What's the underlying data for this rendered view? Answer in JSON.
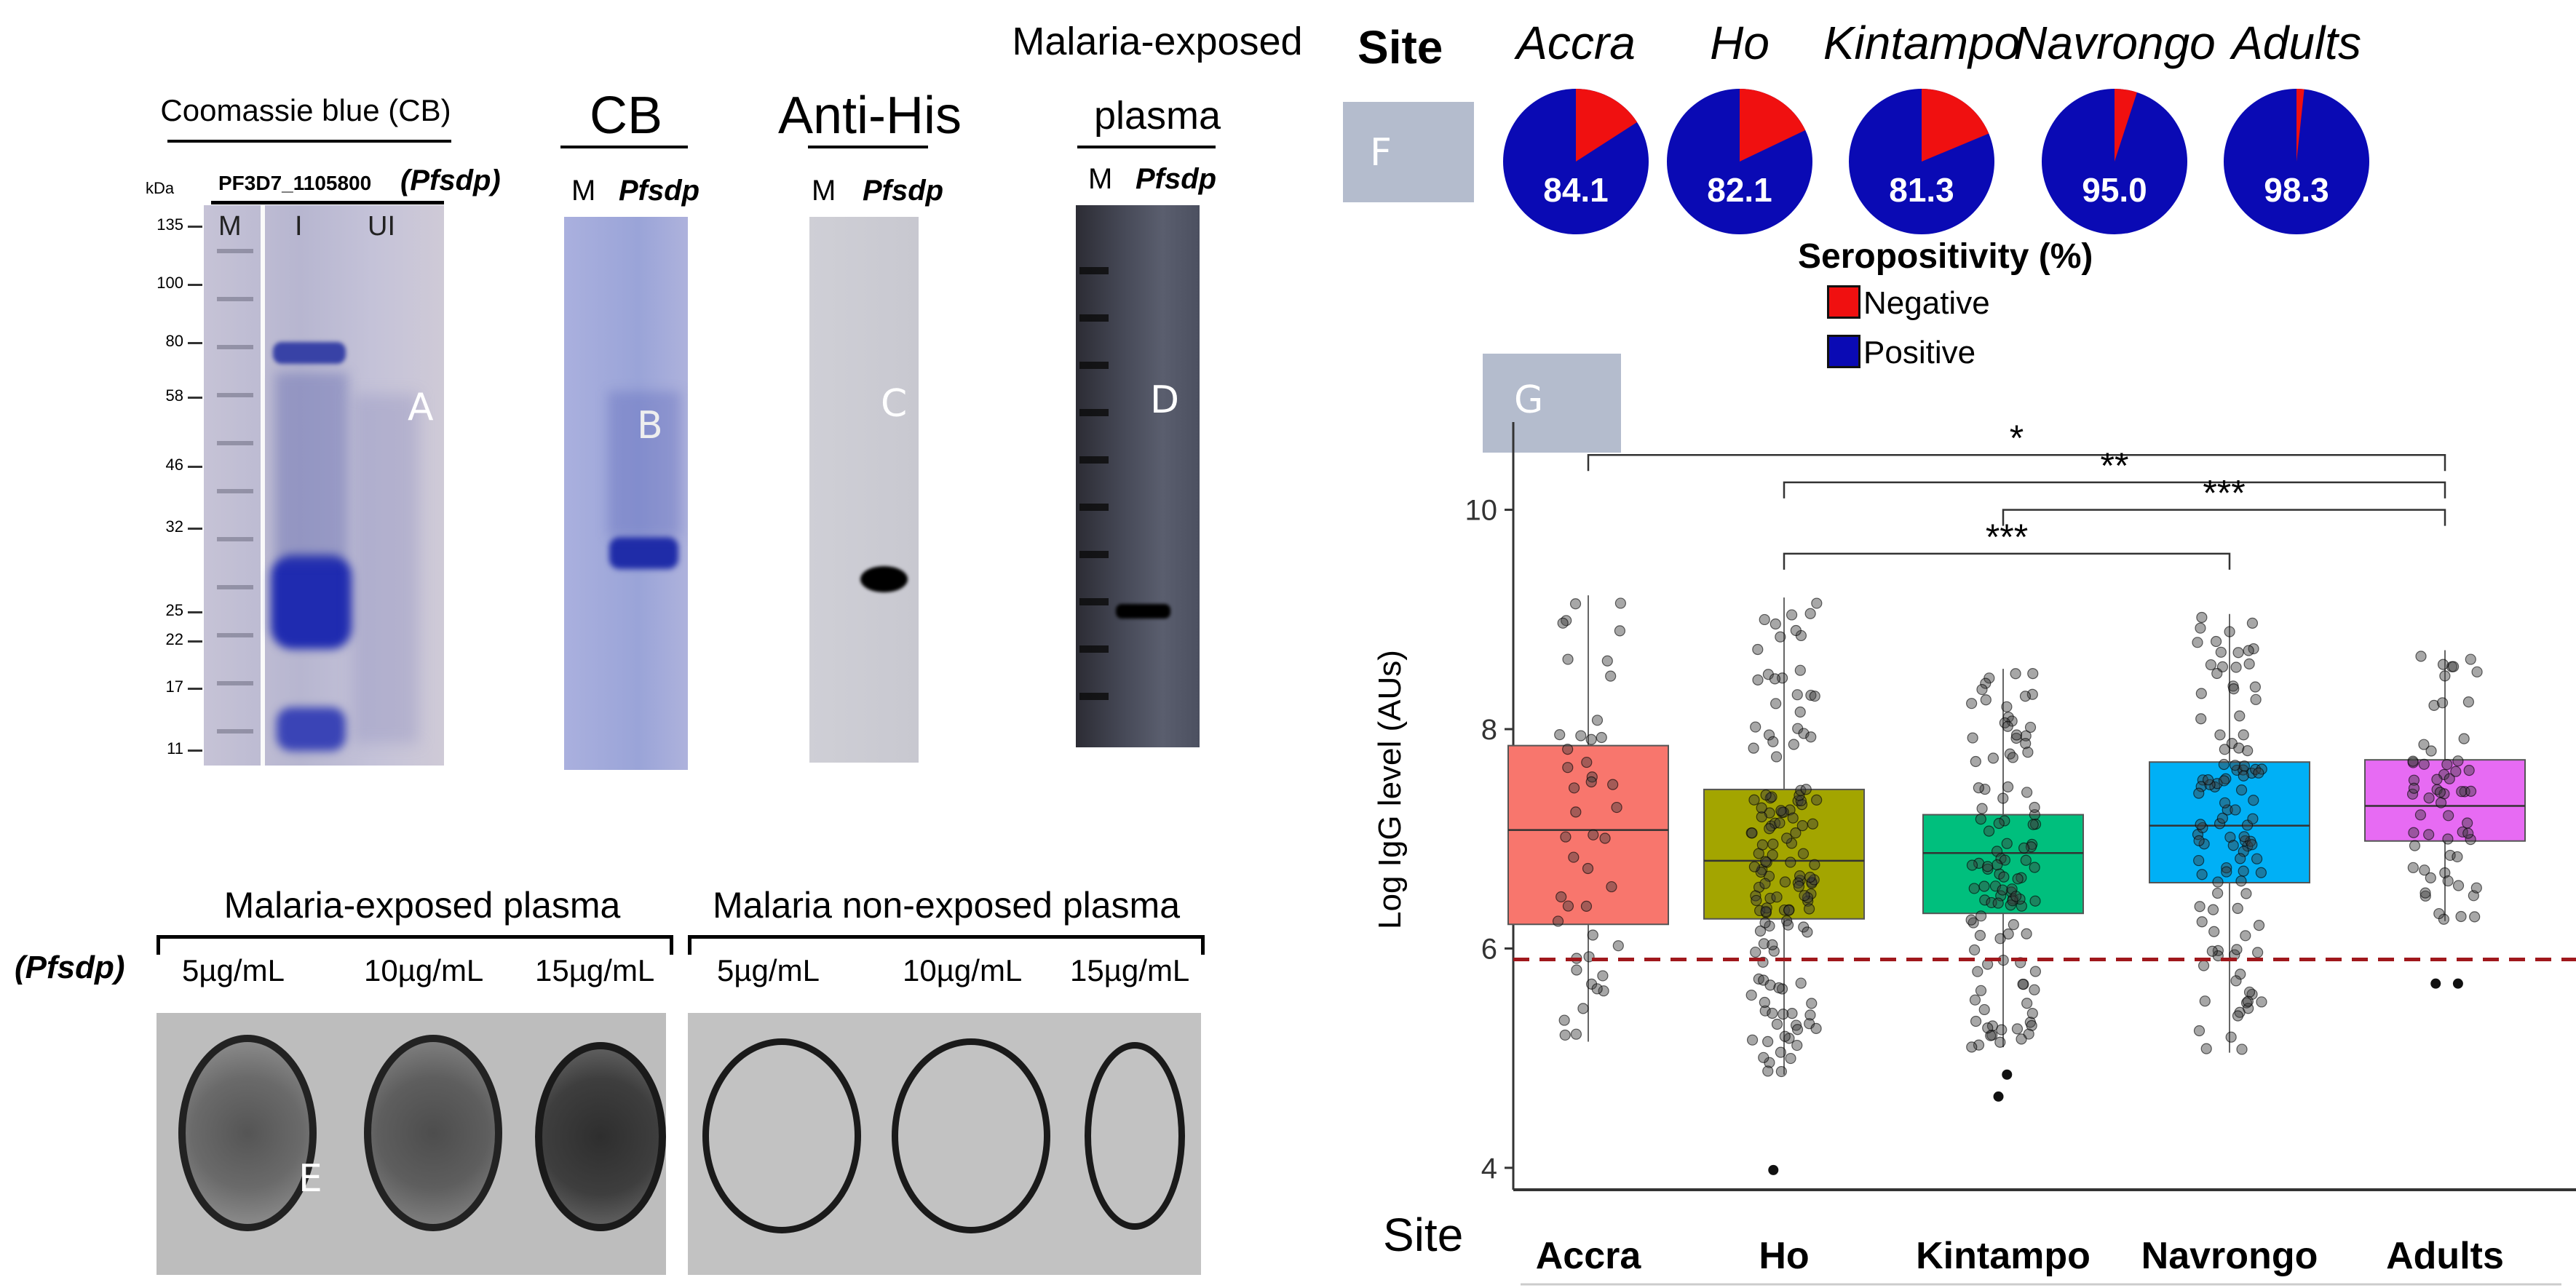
{
  "panelA": {
    "title": "Coomassie blue (CB)",
    "kda_label": "kDa",
    "gene_label": "PF3D7_1105800",
    "gene_suffix": "(Pfsdp)",
    "lanes": [
      "M",
      "I",
      "UI"
    ],
    "markers": [
      "135",
      "100",
      "80",
      "58",
      "46",
      "32",
      "25",
      "22",
      "17",
      "11"
    ],
    "letter": "A"
  },
  "panelB": {
    "title": "CB",
    "lanes": [
      "M",
      "Pfsdp"
    ],
    "letter": "B"
  },
  "panelC": {
    "title": "Anti-His",
    "lanes": [
      "M",
      "Pfsdp"
    ],
    "letter": "C"
  },
  "panelD": {
    "title_line1": "Malaria-exposed",
    "title_line2": "plasma",
    "lanes": [
      "M",
      "Pfsdp"
    ],
    "letter": "D"
  },
  "panelE": {
    "side_label": "(Pfsdp)",
    "exposed_title": "Malaria-exposed plasma",
    "nonexposed_title": "Malaria non-exposed plasma",
    "concentrations": [
      "5µg/mL",
      "10µg/mL",
      "15µg/mL",
      "5µg/mL",
      "10µg/mL",
      "15µg/mL"
    ],
    "letter": "E"
  },
  "panelF": {
    "letter": "F",
    "site_label": "Site",
    "sites": [
      {
        "name": "Accra",
        "positive": 84.1
      },
      {
        "name": "Ho",
        "positive": 82.1
      },
      {
        "name": "Kintampo",
        "positive": 81.3
      },
      {
        "name": "Navrongo",
        "positive": 95.0
      },
      {
        "name": "Adults",
        "positive": 98.3
      }
    ],
    "legend_title": "Seropositivity (%)",
    "legend": [
      {
        "label": "Negative",
        "color": "#f01010"
      },
      {
        "label": "Positive",
        "color": "#0a0ab4"
      }
    ],
    "value_labels": [
      "84.1",
      "82.1",
      "81.3",
      "95.0",
      "98.3"
    ]
  },
  "panelG": {
    "letter": "G",
    "ylabel": "Log IgG level (AUs)",
    "xlabel": "Site",
    "significance": [
      "*",
      "**",
      "***",
      "***"
    ]
  },
  "chart_data": {
    "type": "box",
    "ylabel": "Log IgG level (AUs)",
    "xlabel": "Site",
    "ylim": [
      3.8,
      10.8
    ],
    "yticks": [
      "4",
      "6",
      "8",
      "10"
    ],
    "cutoff": 5.9,
    "categories": [
      "Accra",
      "Ho",
      "Kintampo",
      "Navrongo",
      "Adults"
    ],
    "colors": [
      "#f8766d",
      "#a3a500",
      "#00bf7d",
      "#00b0f6",
      "#e76bf3"
    ],
    "boxes": [
      {
        "q1": 6.22,
        "median": 7.08,
        "q3": 7.85,
        "whisker_low": 5.15,
        "whisker_high": 9.22,
        "n": 45
      },
      {
        "q1": 6.27,
        "median": 6.8,
        "q3": 7.45,
        "whisker_low": 4.85,
        "whisker_high": 9.2,
        "n": 140,
        "outliers": [
          3.98
        ]
      },
      {
        "q1": 6.32,
        "median": 6.87,
        "q3": 7.22,
        "whisker_low": 5.1,
        "whisker_high": 8.55,
        "n": 110,
        "outliers": [
          4.65,
          4.85
        ]
      },
      {
        "q1": 6.6,
        "median": 7.12,
        "q3": 7.7,
        "whisker_low": 5.05,
        "whisker_high": 9.05,
        "n": 110
      },
      {
        "q1": 6.98,
        "median": 7.3,
        "q3": 7.72,
        "whisker_low": 6.25,
        "whisker_high": 8.72,
        "n": 60,
        "outliers": [
          5.68,
          5.68
        ]
      }
    ],
    "comparisons": [
      {
        "from": "Accra",
        "to": "Adults",
        "label": "*",
        "y": 10.5
      },
      {
        "from": "Ho",
        "to": "Adults",
        "label": "**",
        "y": 10.25
      },
      {
        "from": "Kintampo",
        "to": "Adults",
        "label": "***",
        "y": 10.0
      },
      {
        "from": "Ho",
        "to": "Navrongo",
        "label": "***",
        "y": 9.6
      }
    ]
  }
}
